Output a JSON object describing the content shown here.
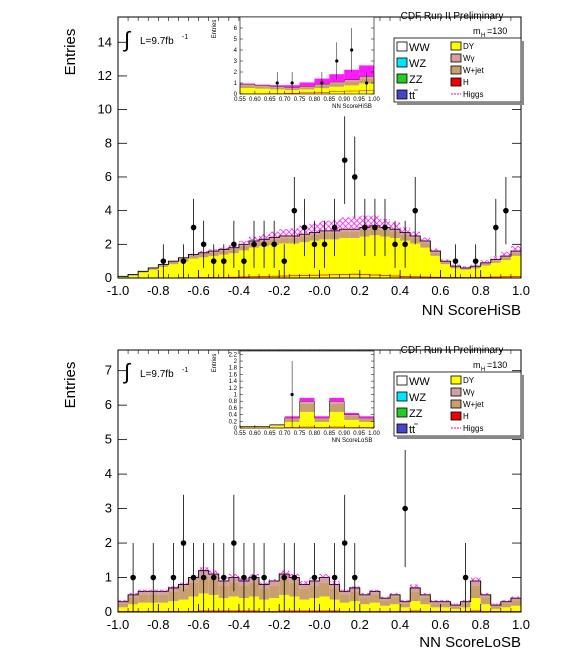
{
  "figure": {
    "panels": [
      {
        "header": "CDF Run II Preliminary",
        "lumi": "L=9.7fb",
        "lumi_sup": "-1",
        "mass_label": "m",
        "mass_sub": "H",
        "mass_value": "=130"
      },
      {
        "header": "CDF Run II Preliminary",
        "lumi": "L=9.7fb",
        "lumi_sup": "-1",
        "mass_label": "m",
        "mass_sub": "H",
        "mass_value": "=130"
      }
    ],
    "legend_left": [
      "WW",
      "WZ",
      "ZZ",
      "tt"
    ],
    "legend_right": [
      "DY",
      "Wγ",
      "W+jet",
      "H",
      "Higgs"
    ],
    "colors": {
      "WW": "#ffffff",
      "WZ": "#00e5ff",
      "ZZ": "#22cc22",
      "tt": "#4444cc",
      "DY": "#ffff00",
      "Wgamma": "#d4a0a0",
      "Wjet": "#c8a070",
      "H": "#ee0000",
      "Higgs": "#ff3399",
      "uncertainty": "#ff00ff"
    }
  },
  "chart_data": [
    {
      "type": "bar",
      "style": "stacked histogram with data points",
      "xlabel": "NN ScoreHiSB",
      "ylabel": "Entries",
      "xlim": [
        -1.0,
        1.0
      ],
      "ylim": [
        0,
        15.5
      ],
      "xticks": [
        "-1.0",
        "-0.8",
        "-0.6",
        "-0.4",
        "-0.2",
        "-0.0",
        "0.2",
        "0.4",
        "0.6",
        "0.8",
        "1.0"
      ],
      "yticks": [
        "0",
        "2",
        "4",
        "6",
        "8",
        "10",
        "12",
        "14"
      ],
      "bins": [
        -1.0,
        -0.95,
        -0.9,
        -0.85,
        -0.8,
        -0.75,
        -0.7,
        -0.65,
        -0.6,
        -0.55,
        -0.5,
        -0.45,
        -0.4,
        -0.35,
        -0.3,
        -0.25,
        -0.2,
        -0.15,
        -0.1,
        -0.05,
        0.0,
        0.05,
        0.1,
        0.15,
        0.2,
        0.25,
        0.3,
        0.35,
        0.4,
        0.45,
        0.5,
        0.55,
        0.6,
        0.65,
        0.7,
        0.75,
        0.8,
        0.85,
        0.9,
        0.95,
        1.0
      ],
      "bkg_total": [
        0.1,
        0.2,
        0.4,
        0.6,
        0.8,
        1.0,
        1.2,
        1.4,
        1.5,
        1.6,
        1.7,
        1.8,
        2.0,
        2.2,
        2.3,
        2.4,
        2.5,
        2.5,
        2.6,
        2.7,
        2.8,
        2.8,
        2.9,
        2.9,
        3.0,
        3.1,
        3.0,
        2.9,
        2.7,
        2.5,
        2.2,
        1.6,
        1.0,
        0.7,
        0.6,
        0.7,
        0.9,
        1.1,
        1.3,
        1.6
      ],
      "dy_fraction": 0.82,
      "signal": [
        0.0,
        0.0,
        0.0,
        0.0,
        0.0,
        0.0,
        0.05,
        0.05,
        0.1,
        0.1,
        0.1,
        0.15,
        0.2,
        0.25,
        0.3,
        0.35,
        0.4,
        0.45,
        0.5,
        0.55,
        0.6,
        0.65,
        0.7,
        0.75,
        0.7,
        0.6,
        0.5,
        0.4,
        0.3,
        0.25,
        0.2,
        0.15,
        0.1,
        0.1,
        0.1,
        0.1,
        0.15,
        0.2,
        0.25,
        0.3
      ],
      "data_points": [
        {
          "x": -0.775,
          "y": 1,
          "err": 1.0
        },
        {
          "x": -0.675,
          "y": 1,
          "err": 1.0
        },
        {
          "x": -0.625,
          "y": 3,
          "err": 1.7
        },
        {
          "x": -0.575,
          "y": 2,
          "err": 1.4
        },
        {
          "x": -0.525,
          "y": 1,
          "err": 1.0
        },
        {
          "x": -0.475,
          "y": 1,
          "err": 1.0
        },
        {
          "x": -0.425,
          "y": 2,
          "err": 1.4
        },
        {
          "x": -0.375,
          "y": 1,
          "err": 1.0
        },
        {
          "x": -0.325,
          "y": 2,
          "err": 1.4
        },
        {
          "x": -0.275,
          "y": 2,
          "err": 1.4
        },
        {
          "x": -0.225,
          "y": 2,
          "err": 1.4
        },
        {
          "x": -0.175,
          "y": 1,
          "err": 1.0
        },
        {
          "x": -0.125,
          "y": 4,
          "err": 2.0
        },
        {
          "x": -0.075,
          "y": 3,
          "err": 1.7
        },
        {
          "x": -0.025,
          "y": 2,
          "err": 1.4
        },
        {
          "x": 0.025,
          "y": 2,
          "err": 1.4
        },
        {
          "x": 0.075,
          "y": 3,
          "err": 1.7
        },
        {
          "x": 0.125,
          "y": 7,
          "err": 2.6
        },
        {
          "x": 0.175,
          "y": 6,
          "err": 2.4
        },
        {
          "x": 0.225,
          "y": 3,
          "err": 1.7
        },
        {
          "x": 0.275,
          "y": 3,
          "err": 1.7
        },
        {
          "x": 0.325,
          "y": 3,
          "err": 1.7
        },
        {
          "x": 0.375,
          "y": 2,
          "err": 1.4
        },
        {
          "x": 0.425,
          "y": 2,
          "err": 1.4
        },
        {
          "x": 0.475,
          "y": 4,
          "err": 2.0
        },
        {
          "x": 0.675,
          "y": 1,
          "err": 1.0
        },
        {
          "x": 0.775,
          "y": 1,
          "err": 1.0
        },
        {
          "x": 0.875,
          "y": 3,
          "err": 1.7
        },
        {
          "x": 0.925,
          "y": 4,
          "err": 2.0
        }
      ],
      "inset": {
        "xlabel": "NN ScoreHiSB",
        "ylabel": "Entries",
        "xlim": [
          0.55,
          1.0
        ],
        "ylim": [
          0,
          7
        ],
        "xticks": [
          "0.55",
          "0.60",
          "0.65",
          "0.70",
          "0.75",
          "0.80",
          "0.85",
          "0.90",
          "0.95",
          "1.00"
        ],
        "yticks": [
          "0",
          "1",
          "2",
          "3",
          "4",
          "5",
          "6"
        ],
        "bins": [
          0.55,
          0.6,
          0.65,
          0.7,
          0.75,
          0.8,
          0.85,
          0.9,
          0.95,
          1.0
        ],
        "bkg_total": [
          0.9,
          0.8,
          0.7,
          0.6,
          0.7,
          0.9,
          1.1,
          1.3,
          1.6
        ],
        "signal": [
          0.05,
          0.05,
          0.1,
          0.2,
          0.35,
          0.5,
          0.7,
          0.9,
          1.0
        ],
        "data_points": [
          {
            "x": 0.675,
            "y": 1,
            "err": 1.0
          },
          {
            "x": 0.725,
            "y": 1,
            "err": 1.0
          },
          {
            "x": 0.825,
            "y": 1,
            "err": 1.0
          },
          {
            "x": 0.875,
            "y": 3,
            "err": 1.7
          },
          {
            "x": 0.925,
            "y": 4,
            "err": 2.0
          },
          {
            "x": 0.975,
            "y": 1,
            "err": 1.0
          }
        ]
      }
    },
    {
      "type": "bar",
      "style": "stacked histogram with data points",
      "xlabel": "NN ScoreLoSB",
      "ylabel": "Entries",
      "xlim": [
        -1.0,
        1.0
      ],
      "ylim": [
        0,
        7.6
      ],
      "xticks": [
        "-1.0",
        "-0.8",
        "-0.6",
        "-0.4",
        "-0.2",
        "-0.0",
        "0.2",
        "0.4",
        "0.6",
        "0.8",
        "1.0"
      ],
      "yticks": [
        "0",
        "1",
        "2",
        "3",
        "4",
        "5",
        "6",
        "7"
      ],
      "bins": [
        -1.0,
        -0.95,
        -0.9,
        -0.85,
        -0.8,
        -0.75,
        -0.7,
        -0.65,
        -0.6,
        -0.55,
        -0.5,
        -0.45,
        -0.4,
        -0.35,
        -0.3,
        -0.25,
        -0.2,
        -0.15,
        -0.1,
        -0.05,
        0.0,
        0.05,
        0.1,
        0.15,
        0.2,
        0.25,
        0.3,
        0.35,
        0.4,
        0.45,
        0.5,
        0.55,
        0.6,
        0.65,
        0.7,
        0.75,
        0.8,
        0.85,
        0.9,
        0.95,
        1.0
      ],
      "bkg_total": [
        0.3,
        0.5,
        0.6,
        0.6,
        0.6,
        0.7,
        0.8,
        1.0,
        1.2,
        1.1,
        0.9,
        1.0,
        0.9,
        1.0,
        0.8,
        0.9,
        1.1,
        1.0,
        0.8,
        0.9,
        1.0,
        0.8,
        0.6,
        0.7,
        0.5,
        0.6,
        0.4,
        0.5,
        0.3,
        0.7,
        0.5,
        0.3,
        0.3,
        0.2,
        0.3,
        0.9,
        0.5,
        0.2,
        0.3,
        0.4
      ],
      "dy_fraction": 0.45,
      "signal": [
        0.05,
        0.05,
        0.05,
        0.05,
        0.05,
        0.05,
        0.05,
        0.05,
        0.1,
        0.1,
        0.1,
        0.1,
        0.1,
        0.1,
        0.05,
        0.05,
        0.1,
        0.1,
        0.1,
        0.1,
        0.1,
        0.1,
        0.05,
        0.05,
        0.05,
        0.05,
        0.05,
        0.05,
        0.05,
        0.1,
        0.05,
        0.05,
        0.05,
        0.05,
        0.05,
        0.1,
        0.05,
        0.05,
        0.05,
        0.05
      ],
      "data_points": [
        {
          "x": -0.925,
          "y": 1,
          "err": 1.0
        },
        {
          "x": -0.825,
          "y": 1,
          "err": 1.0
        },
        {
          "x": -0.725,
          "y": 1,
          "err": 1.0
        },
        {
          "x": -0.675,
          "y": 2,
          "err": 1.4
        },
        {
          "x": -0.625,
          "y": 1,
          "err": 1.0
        },
        {
          "x": -0.575,
          "y": 1,
          "err": 1.0
        },
        {
          "x": -0.525,
          "y": 1,
          "err": 1.0
        },
        {
          "x": -0.475,
          "y": 1,
          "err": 1.0
        },
        {
          "x": -0.425,
          "y": 2,
          "err": 1.4
        },
        {
          "x": -0.375,
          "y": 1,
          "err": 1.0
        },
        {
          "x": -0.325,
          "y": 1,
          "err": 1.0
        },
        {
          "x": -0.275,
          "y": 1,
          "err": 1.0
        },
        {
          "x": -0.175,
          "y": 1,
          "err": 1.0
        },
        {
          "x": -0.125,
          "y": 1,
          "err": 1.0
        },
        {
          "x": -0.025,
          "y": 1,
          "err": 1.0
        },
        {
          "x": 0.075,
          "y": 1,
          "err": 1.0
        },
        {
          "x": 0.125,
          "y": 2,
          "err": 1.4
        },
        {
          "x": 0.175,
          "y": 1,
          "err": 1.0
        },
        {
          "x": 0.425,
          "y": 3,
          "err": 1.7
        },
        {
          "x": 0.725,
          "y": 1,
          "err": 1.0
        }
      ],
      "inset": {
        "xlabel": "NN ScoreLoSB",
        "ylabel": "Entries",
        "xlim": [
          0.55,
          1.0
        ],
        "ylim": [
          0,
          2.3
        ],
        "xticks": [
          "0.55",
          "0.60",
          "0.65",
          "0.70",
          "0.75",
          "0.80",
          "0.85",
          "0.90",
          "0.95",
          "1.00"
        ],
        "yticks": [
          "0",
          "0.2",
          "0.4",
          "0.6",
          "0.8",
          "1",
          "1.2",
          "1.4",
          "1.6",
          "1.8",
          "2",
          "2.2"
        ],
        "bins": [
          0.55,
          0.6,
          0.65,
          0.7,
          0.75,
          0.8,
          0.85,
          0.9,
          0.95,
          1.0
        ],
        "bkg_total": [
          0.05,
          0.05,
          0.1,
          0.3,
          0.8,
          0.3,
          0.8,
          0.4,
          0.3
        ],
        "signal": [
          0.0,
          0.0,
          0.0,
          0.05,
          0.1,
          0.05,
          0.1,
          0.05,
          0.05
        ],
        "data_points": [
          {
            "x": 0.725,
            "y": 1,
            "err": 1.0
          }
        ]
      }
    }
  ]
}
